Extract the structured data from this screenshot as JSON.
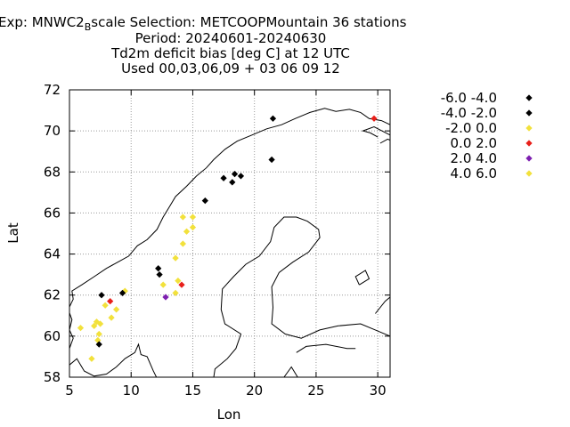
{
  "title": {
    "line1_prefix": "Exp: MNWC2",
    "line1_sub": "B",
    "line1_suffix": "scale   Selection: METCOOPMountain     36 stations",
    "line2": "Period: 20240601-20240630",
    "line3": "Td2m deficit bias [deg C] at  12 UTC",
    "line4": "Used 00,03,06,09 + 03 06 09 12"
  },
  "axes": {
    "xlabel": "Lon",
    "ylabel": "Lat",
    "xlim": [
      5,
      31
    ],
    "ylim": [
      58,
      72
    ],
    "xticks": [
      5,
      10,
      15,
      20,
      25,
      30
    ],
    "yticks": [
      58,
      60,
      62,
      64,
      66,
      68,
      70,
      72
    ],
    "grid": true
  },
  "colors": {
    "black": "#000000",
    "yellow": "#f2e13c",
    "red": "#e8201a",
    "purple": "#7d1fb0",
    "coast": "#000000",
    "grid": "#999999"
  },
  "chart_data": {
    "type": "scatter",
    "legend": [
      {
        "label": "-6.0 -4.0",
        "color": "#000000"
      },
      {
        "label": "-4.0 -2.0",
        "color": "#000000"
      },
      {
        "label": "-2.0 0.0",
        "color": "#f2e13c"
      },
      {
        "label": "0.0 2.0",
        "color": "#e8201a"
      },
      {
        "label": "2.0 4.0",
        "color": "#7d1fb0"
      },
      {
        "label": "4.0 6.0",
        "color": "#f2e13c"
      }
    ],
    "points": [
      {
        "lon": 21.5,
        "lat": 70.6,
        "cls": 1
      },
      {
        "lon": 29.7,
        "lat": 70.6,
        "cls": 3
      },
      {
        "lon": 21.4,
        "lat": 68.6,
        "cls": 1
      },
      {
        "lon": 18.4,
        "lat": 67.9,
        "cls": 1
      },
      {
        "lon": 18.9,
        "lat": 67.8,
        "cls": 1
      },
      {
        "lon": 17.5,
        "lat": 67.7,
        "cls": 1
      },
      {
        "lon": 18.2,
        "lat": 67.5,
        "cls": 1
      },
      {
        "lon": 16.0,
        "lat": 66.6,
        "cls": 1
      },
      {
        "lon": 14.2,
        "lat": 65.8,
        "cls": 2
      },
      {
        "lon": 15.0,
        "lat": 65.8,
        "cls": 2
      },
      {
        "lon": 15.0,
        "lat": 65.3,
        "cls": 2
      },
      {
        "lon": 14.5,
        "lat": 65.1,
        "cls": 2
      },
      {
        "lon": 14.2,
        "lat": 64.5,
        "cls": 2
      },
      {
        "lon": 13.6,
        "lat": 63.8,
        "cls": 2
      },
      {
        "lon": 12.2,
        "lat": 63.3,
        "cls": 1
      },
      {
        "lon": 12.3,
        "lat": 63.0,
        "cls": 1
      },
      {
        "lon": 12.6,
        "lat": 62.5,
        "cls": 2
      },
      {
        "lon": 13.8,
        "lat": 62.7,
        "cls": 2
      },
      {
        "lon": 14.1,
        "lat": 62.5,
        "cls": 3
      },
      {
        "lon": 13.6,
        "lat": 62.1,
        "cls": 2
      },
      {
        "lon": 12.8,
        "lat": 61.9,
        "cls": 4
      },
      {
        "lon": 9.5,
        "lat": 62.2,
        "cls": 2
      },
      {
        "lon": 9.3,
        "lat": 62.1,
        "cls": 1
      },
      {
        "lon": 7.6,
        "lat": 62.0,
        "cls": 1
      },
      {
        "lon": 8.3,
        "lat": 61.7,
        "cls": 3
      },
      {
        "lon": 7.9,
        "lat": 61.5,
        "cls": 2
      },
      {
        "lon": 8.8,
        "lat": 61.3,
        "cls": 2
      },
      {
        "lon": 8.4,
        "lat": 60.9,
        "cls": 2
      },
      {
        "lon": 7.2,
        "lat": 60.7,
        "cls": 2
      },
      {
        "lon": 7.5,
        "lat": 60.6,
        "cls": 2
      },
      {
        "lon": 5.9,
        "lat": 60.4,
        "cls": 2
      },
      {
        "lon": 7.4,
        "lat": 60.1,
        "cls": 2
      },
      {
        "lon": 7.3,
        "lat": 59.8,
        "cls": 2
      },
      {
        "lon": 7.4,
        "lat": 59.6,
        "cls": 1
      },
      {
        "lon": 6.8,
        "lat": 58.9,
        "cls": 2
      },
      {
        "lon": 7.0,
        "lat": 60.5,
        "cls": 2
      }
    ]
  }
}
